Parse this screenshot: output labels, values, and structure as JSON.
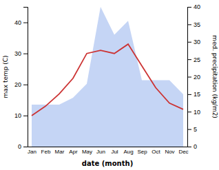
{
  "chart_data": {
    "type": "line",
    "categories": [
      "Jan",
      "Feb",
      "Mar",
      "Apr",
      "May",
      "Jun",
      "Jul",
      "Aug",
      "Sep",
      "Oct",
      "Nov",
      "Dec"
    ],
    "series": [
      {
        "type": "area",
        "axis": "y2",
        "color": "#c5d5f5",
        "values": [
          12,
          12,
          12,
          14,
          18,
          40,
          32,
          36,
          19,
          19,
          19,
          15
        ]
      },
      {
        "type": "line",
        "color": "#cc3333",
        "values": [
          10,
          13,
          17,
          22,
          30,
          31,
          30,
          33,
          26,
          19,
          14,
          12
        ]
      }
    ],
    "xlabel": "date (month)",
    "ylabel": "max temp (C)",
    "y2label": "med. precipitation (kg/m2)",
    "ylim": [
      0,
      45
    ],
    "yticks": [
      0,
      10,
      20,
      30,
      40
    ],
    "y2lim": [
      0,
      40
    ],
    "y2ticks": [
      0,
      5,
      10,
      15,
      20,
      25,
      30,
      35,
      40
    ],
    "grid": false
  }
}
